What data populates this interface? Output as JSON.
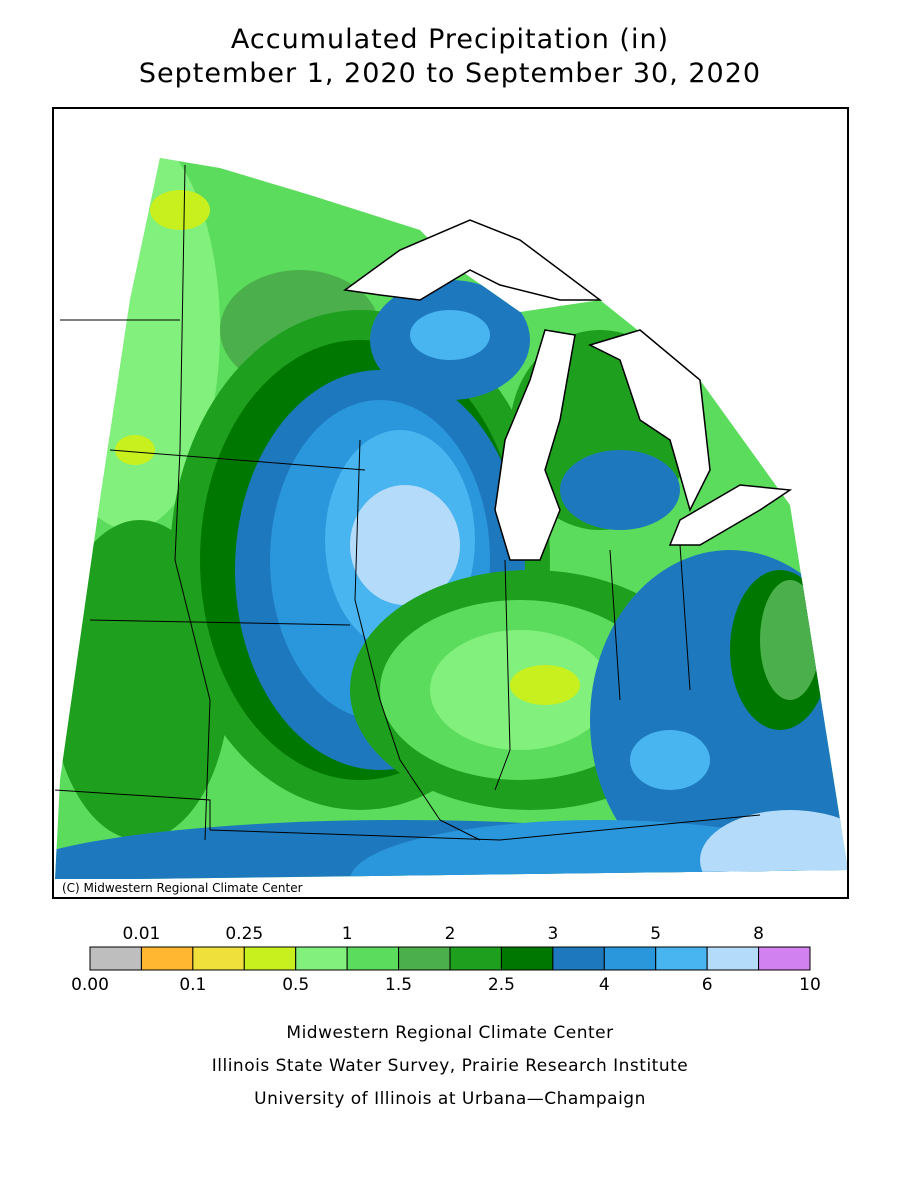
{
  "title": [
    "Accumulated Precipitation (in)",
    "September 1, 2020 to September 30, 2020"
  ],
  "copyright": "(C) Midwestern Regional Climate Center",
  "legend": {
    "colors": [
      "#bebebe",
      "#ffb732",
      "#f0e03c",
      "#c8f01e",
      "#82f07c",
      "#5cdc5c",
      "#4bb04b",
      "#1ea01e",
      "#007800",
      "#1e78be",
      "#2a96dc",
      "#48b4f0",
      "#b4dcfa",
      "#d282f0"
    ],
    "boundaries": [
      {
        "value": 0,
        "label": "0.00"
      },
      0.01,
      0.1,
      0.25,
      0.5,
      1,
      1.5,
      2,
      2.5,
      3,
      4,
      5,
      6,
      8,
      10
    ]
  },
  "credits": [
    "Midwestern Regional Climate Center",
    "Illinois State Water Survey, Prairie Research Institute",
    "University of Illinois at Urbana—Champaign"
  ]
}
